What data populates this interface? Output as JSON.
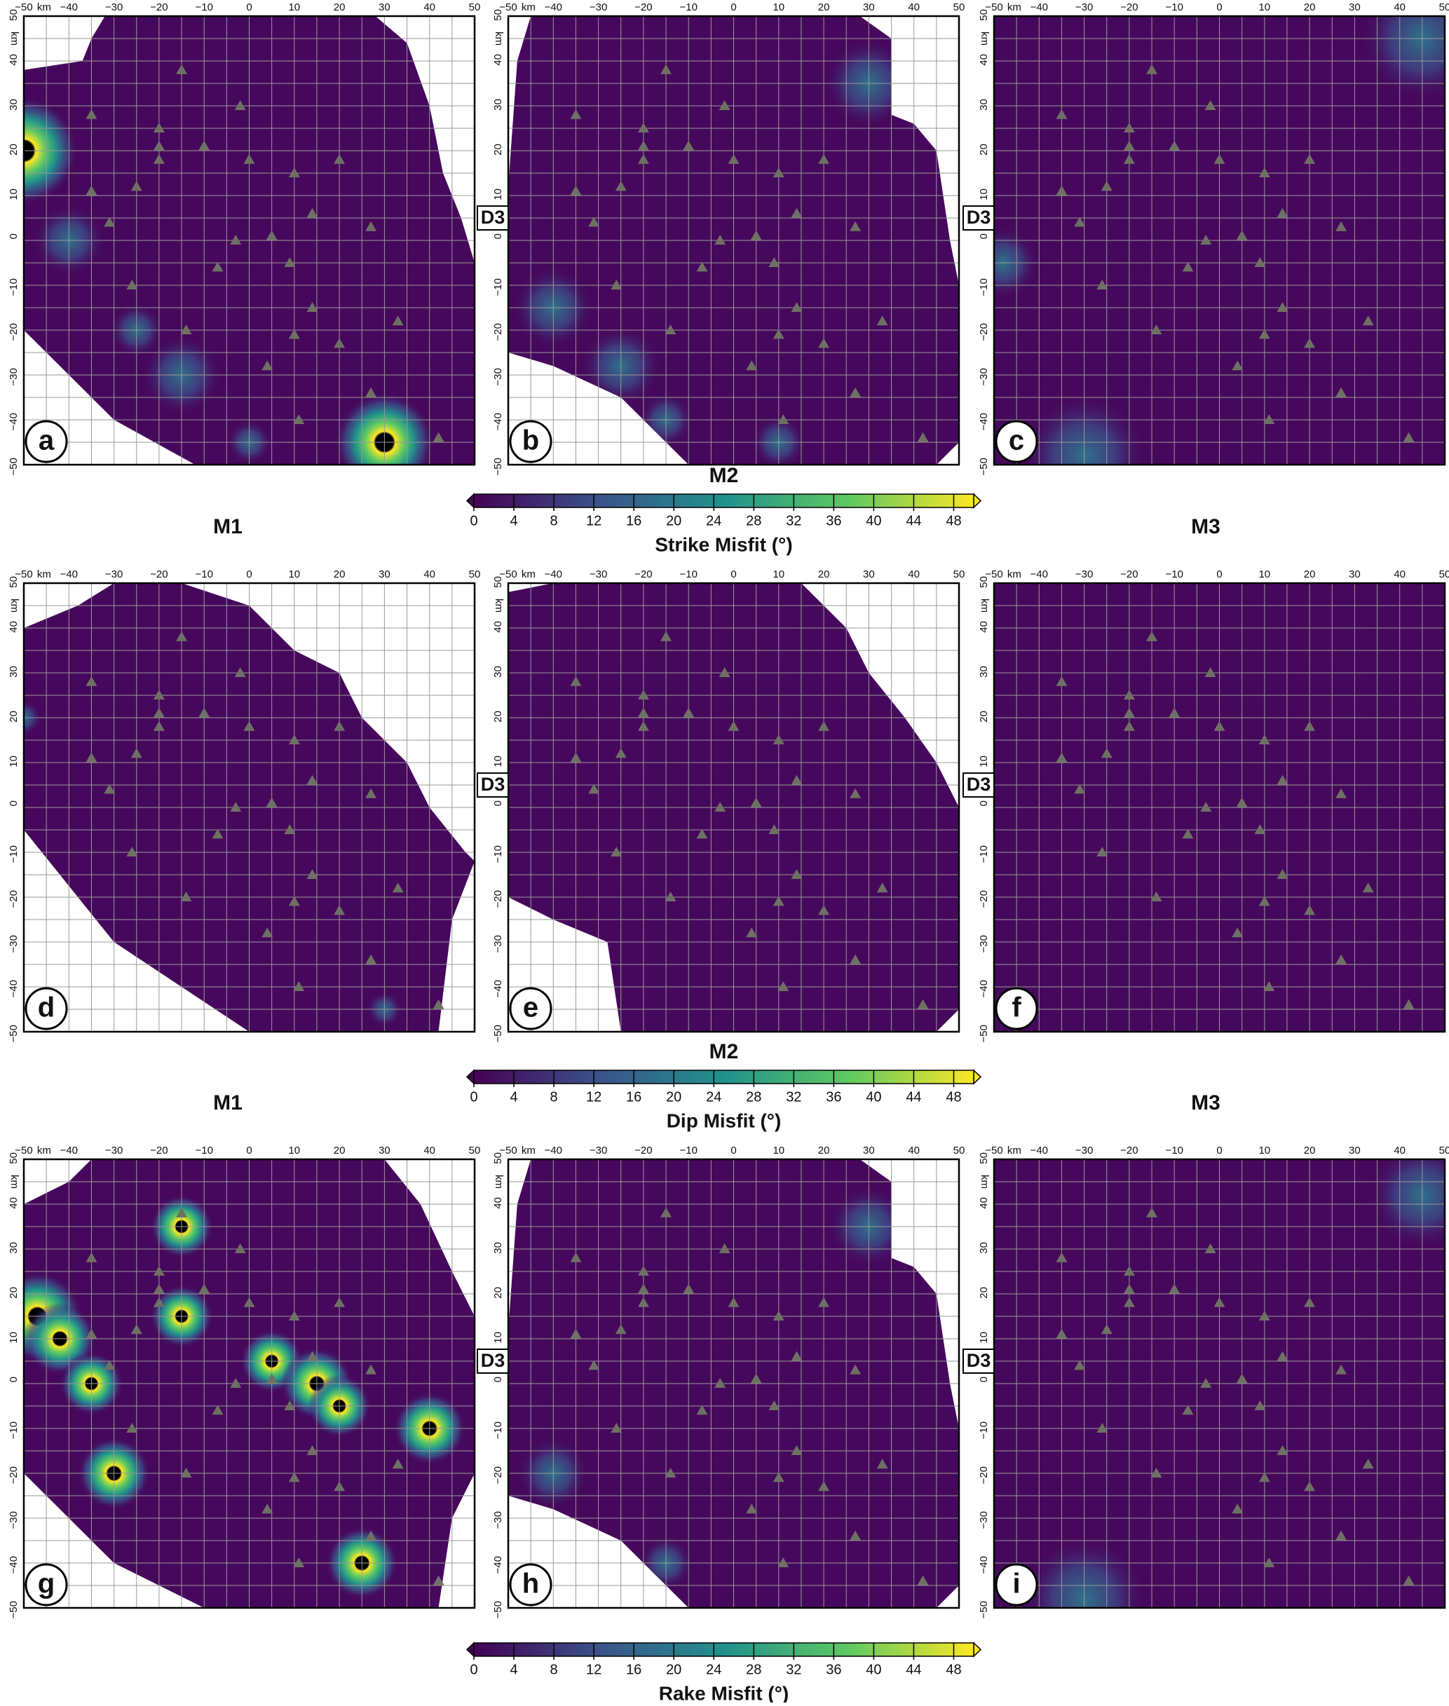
{
  "axis": {
    "unit": "km",
    "xlim": [
      -50,
      50
    ],
    "ylim": [
      -50,
      50
    ],
    "xticks": [
      {
        "value": -50,
        "label": "−50"
      },
      {
        "value": -40,
        "label": "−40"
      },
      {
        "value": -30,
        "label": "−30"
      },
      {
        "value": -20,
        "label": "−20"
      },
      {
        "value": -10,
        "label": "−10"
      },
      0,
      10,
      20,
      30,
      40,
      50
    ],
    "yticks": [
      {
        "value": -50,
        "label": "−50"
      },
      {
        "value": -40,
        "label": "−40"
      },
      {
        "value": -30,
        "label": "−30"
      },
      {
        "value": -20,
        "label": "−20"
      },
      {
        "value": -10,
        "label": "−10"
      },
      0,
      10,
      20,
      30,
      40,
      50
    ]
  },
  "marker_label": "D3",
  "stations": [
    [
      -15,
      38
    ],
    [
      -35,
      28
    ],
    [
      -20,
      25
    ],
    [
      -20,
      21
    ],
    [
      -20,
      18
    ],
    [
      -10,
      21
    ],
    [
      -2,
      30
    ],
    [
      0,
      18
    ],
    [
      -35,
      11
    ],
    [
      -25,
      12
    ],
    [
      -31,
      4
    ],
    [
      -3,
      0
    ],
    [
      -7,
      -6
    ],
    [
      10,
      15
    ],
    [
      14,
      6
    ],
    [
      9,
      -5
    ],
    [
      5,
      1
    ],
    [
      -14,
      -20
    ],
    [
      -26,
      -10
    ],
    [
      10,
      -21
    ],
    [
      14,
      -15
    ],
    [
      20,
      -23
    ],
    [
      27,
      3
    ],
    [
      33,
      -18
    ],
    [
      27,
      -34
    ],
    [
      4,
      -28
    ],
    [
      11,
      -40
    ],
    [
      42,
      -44
    ],
    [
      20,
      18
    ]
  ],
  "rows": [
    {
      "panels": [
        {
          "letter": "a"
        },
        {
          "letter": "b"
        },
        {
          "letter": "c"
        }
      ],
      "titles": [
        "M1",
        "M2",
        "M3"
      ],
      "colorbar": {
        "label": "Strike Misfit (°)",
        "lim": [
          0,
          50
        ],
        "ticks": [
          0,
          4,
          8,
          12,
          16,
          20,
          24,
          28,
          32,
          36,
          40,
          44,
          48
        ]
      }
    },
    {
      "panels": [
        {
          "letter": "d"
        },
        {
          "letter": "e"
        },
        {
          "letter": "f"
        }
      ],
      "titles": [
        "M1",
        "M2",
        "M3"
      ],
      "colorbar": {
        "label": "Dip Misfit (°)",
        "lim": [
          0,
          50
        ],
        "ticks": [
          0,
          4,
          8,
          12,
          16,
          20,
          24,
          28,
          32,
          36,
          40,
          44,
          48
        ]
      }
    },
    {
      "panels": [
        {
          "letter": "g"
        },
        {
          "letter": "h"
        },
        {
          "letter": "i"
        }
      ],
      "colorbar": {
        "label": "Rake Misfit (°)",
        "lim": [
          0,
          50
        ],
        "ticks": [
          0,
          4,
          8,
          12,
          16,
          20,
          24,
          28,
          32,
          36,
          40,
          44,
          48
        ]
      }
    }
  ]
}
